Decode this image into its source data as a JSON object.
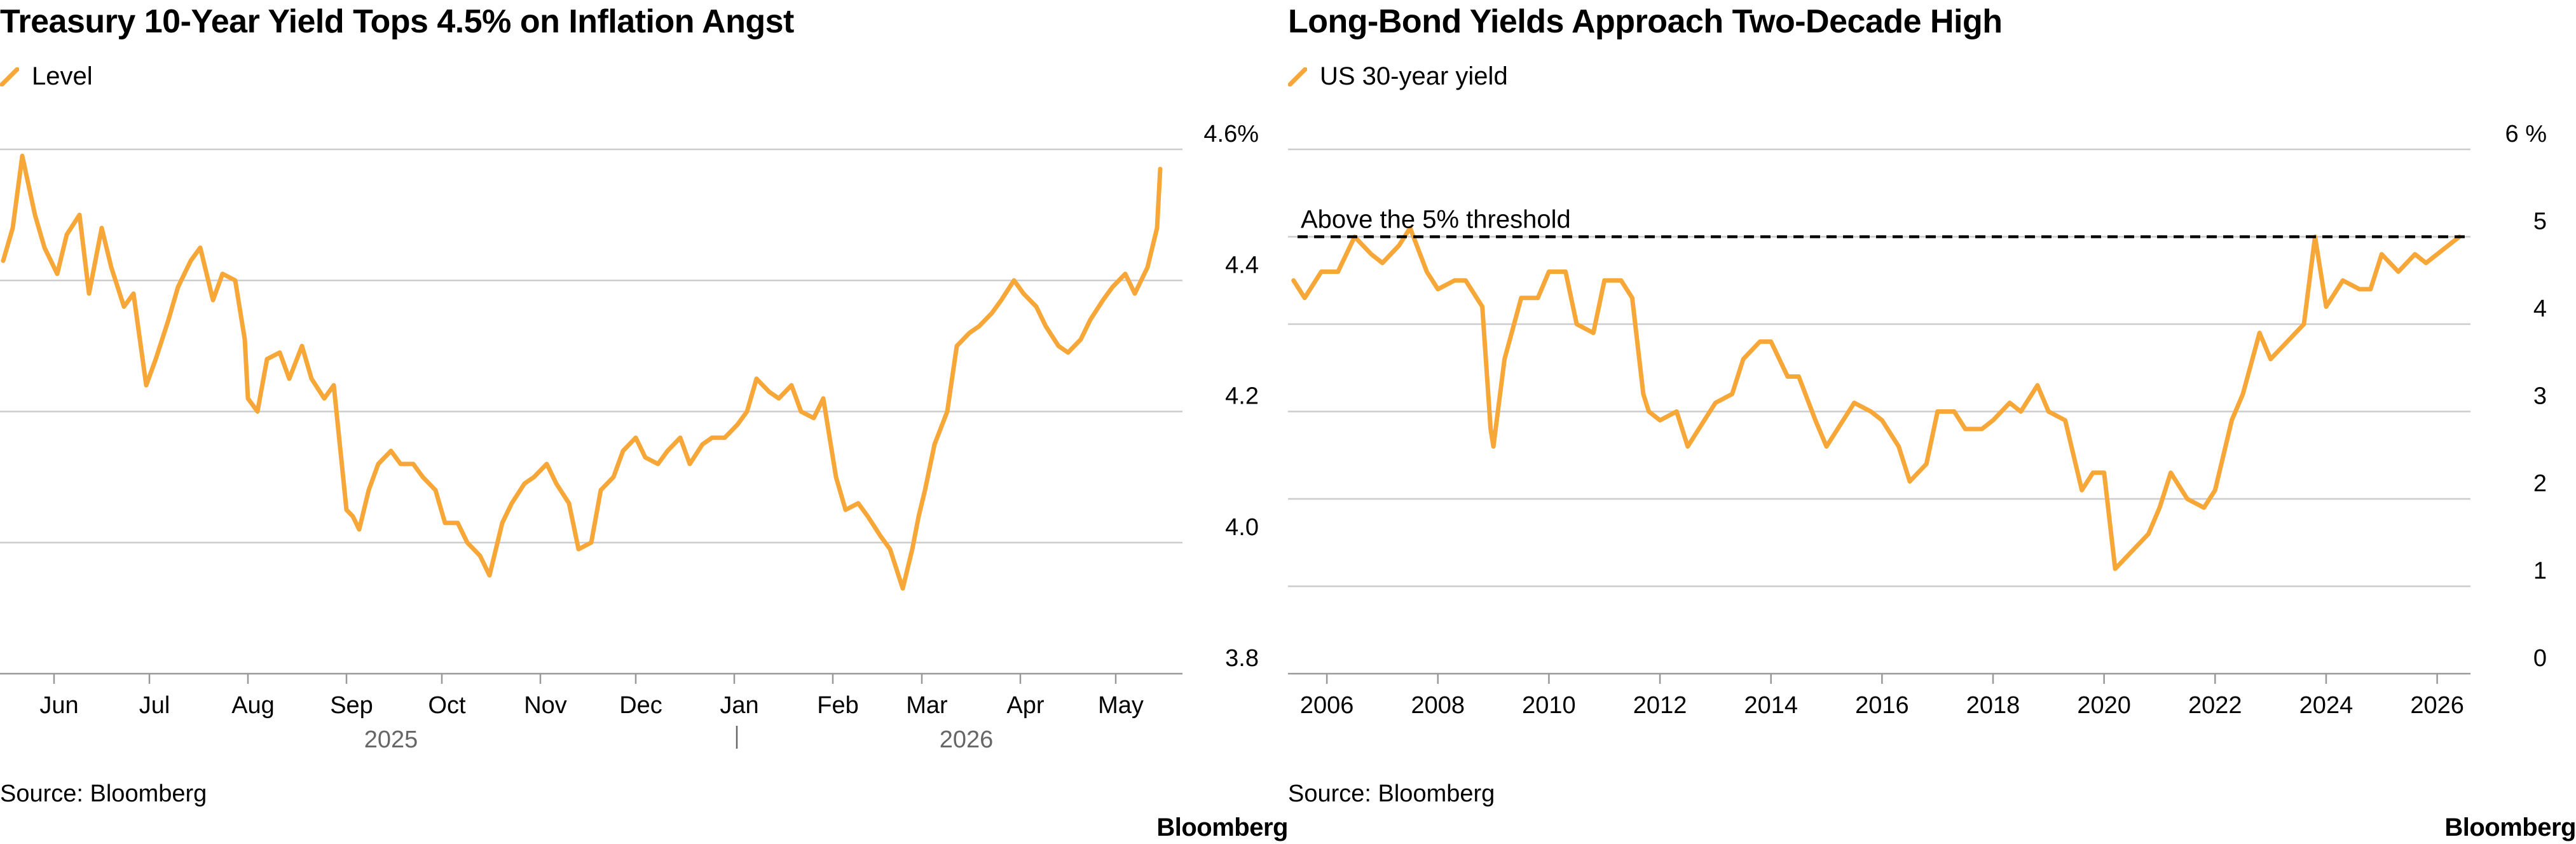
{
  "colors": {
    "series": "#F6A737",
    "grid": "#CCCCCC",
    "axis": "#999999",
    "threshold": "#000000"
  },
  "chart_data": [
    {
      "type": "line",
      "title": "Treasury 10-Year Yield Tops 4.5% on Inflation Angst",
      "legend": [
        "Level"
      ],
      "legend_position": "top-left",
      "source": "Source: Bloomberg",
      "brand": "Bloomberg",
      "grid": true,
      "y_axis_side": "right",
      "ylim": [
        3.8,
        4.6
      ],
      "yticks": [
        3.8,
        4.0,
        4.2,
        4.4,
        4.6
      ],
      "ytick_labels": [
        "3.8",
        "4.0",
        "4.2",
        "4.4",
        "4.6%"
      ],
      "xlim": [
        "2025-05-15",
        "2026-05-22"
      ],
      "x_month_ticks": [
        {
          "date": "2025-06-01",
          "label": "Jun"
        },
        {
          "date": "2025-07-01",
          "label": "Jul"
        },
        {
          "date": "2025-08-01",
          "label": "Aug"
        },
        {
          "date": "2025-09-01",
          "label": "Sep"
        },
        {
          "date": "2025-10-01",
          "label": "Oct"
        },
        {
          "date": "2025-11-01",
          "label": "Nov"
        },
        {
          "date": "2025-12-01",
          "label": "Dec"
        },
        {
          "date": "2026-01-01",
          "label": "Jan"
        },
        {
          "date": "2026-02-01",
          "label": "Feb"
        },
        {
          "date": "2026-03-01",
          "label": "Mar"
        },
        {
          "date": "2026-04-01",
          "label": "Apr"
        },
        {
          "date": "2026-05-01",
          "label": "May"
        }
      ],
      "x_year_labels": [
        {
          "label": "2025",
          "date": "2025-09-15"
        },
        {
          "label": "2026",
          "date": "2026-03-15"
        }
      ],
      "year_divider": "2026-01-01",
      "series": [
        {
          "name": "Level",
          "x": [
            "2025-05-16",
            "2025-05-19",
            "2025-05-22",
            "2025-05-26",
            "2025-05-29",
            "2025-06-02",
            "2025-06-05",
            "2025-06-09",
            "2025-06-12",
            "2025-06-16",
            "2025-06-19",
            "2025-06-23",
            "2025-06-26",
            "2025-06-30",
            "2025-07-03",
            "2025-07-07",
            "2025-07-10",
            "2025-07-14",
            "2025-07-17",
            "2025-07-21",
            "2025-07-24",
            "2025-07-28",
            "2025-07-31",
            "2025-08-01",
            "2025-08-04",
            "2025-08-07",
            "2025-08-11",
            "2025-08-14",
            "2025-08-18",
            "2025-08-21",
            "2025-08-25",
            "2025-08-28",
            "2025-09-01",
            "2025-09-03",
            "2025-09-05",
            "2025-09-08",
            "2025-09-11",
            "2025-09-15",
            "2025-09-18",
            "2025-09-22",
            "2025-09-25",
            "2025-09-29",
            "2025-10-02",
            "2025-10-06",
            "2025-10-09",
            "2025-10-13",
            "2025-10-16",
            "2025-10-20",
            "2025-10-23",
            "2025-10-27",
            "2025-10-30",
            "2025-11-03",
            "2025-11-06",
            "2025-11-10",
            "2025-11-13",
            "2025-11-17",
            "2025-11-20",
            "2025-11-24",
            "2025-11-27",
            "2025-12-01",
            "2025-12-04",
            "2025-12-08",
            "2025-12-11",
            "2025-12-15",
            "2025-12-18",
            "2025-12-22",
            "2025-12-25",
            "2025-12-29",
            "2026-01-02",
            "2026-01-05",
            "2026-01-08",
            "2026-01-12",
            "2026-01-15",
            "2026-01-19",
            "2026-01-22",
            "2026-01-26",
            "2026-01-29",
            "2026-02-02",
            "2026-02-05",
            "2026-02-09",
            "2026-02-12",
            "2026-02-16",
            "2026-02-19",
            "2026-02-23",
            "2026-02-26",
            "2026-02-28",
            "2026-03-02",
            "2026-03-05",
            "2026-03-09",
            "2026-03-12",
            "2026-03-16",
            "2026-03-19",
            "2026-03-23",
            "2026-03-26",
            "2026-03-30",
            "2026-04-02",
            "2026-04-06",
            "2026-04-09",
            "2026-04-13",
            "2026-04-16",
            "2026-04-20",
            "2026-04-23",
            "2026-04-27",
            "2026-04-30",
            "2026-05-04",
            "2026-05-07",
            "2026-05-11",
            "2026-05-14",
            "2026-05-15"
          ],
          "values": [
            4.43,
            4.48,
            4.59,
            4.5,
            4.45,
            4.41,
            4.47,
            4.5,
            4.38,
            4.48,
            4.42,
            4.36,
            4.38,
            4.24,
            4.28,
            4.34,
            4.39,
            4.43,
            4.45,
            4.37,
            4.41,
            4.4,
            4.31,
            4.22,
            4.2,
            4.28,
            4.29,
            4.25,
            4.3,
            4.25,
            4.22,
            4.24,
            4.05,
            4.04,
            4.02,
            4.08,
            4.12,
            4.14,
            4.12,
            4.12,
            4.1,
            4.08,
            4.03,
            4.03,
            4.0,
            3.98,
            3.95,
            4.03,
            4.06,
            4.09,
            4.1,
            4.12,
            4.09,
            4.06,
            3.99,
            4.0,
            4.08,
            4.1,
            4.14,
            4.16,
            4.13,
            4.12,
            4.14,
            4.16,
            4.12,
            4.15,
            4.16,
            4.16,
            4.18,
            4.2,
            4.25,
            4.23,
            4.22,
            4.24,
            4.2,
            4.19,
            4.22,
            4.1,
            4.05,
            4.06,
            4.04,
            4.01,
            3.99,
            3.93,
            3.99,
            4.04,
            4.08,
            4.15,
            4.2,
            4.3,
            4.32,
            4.33,
            4.35,
            4.37,
            4.4,
            4.38,
            4.36,
            4.33,
            4.3,
            4.29,
            4.31,
            4.34,
            4.37,
            4.39,
            4.41,
            4.38,
            4.42,
            4.48,
            4.57
          ]
        }
      ]
    },
    {
      "type": "line",
      "title": "Long-Bond Yields Approach Two-Decade High",
      "legend": [
        "US 30-year yield"
      ],
      "legend_position": "top-left",
      "source": "Source: Bloomberg",
      "brand": "Bloomberg",
      "grid": true,
      "y_axis_side": "right",
      "ylim": [
        0,
        6
      ],
      "yticks": [
        0,
        1,
        2,
        3,
        4,
        5,
        6
      ],
      "ytick_labels": [
        "0",
        "1",
        "2",
        "3",
        "4",
        "5",
        "6 %"
      ],
      "xlim": [
        2005.3,
        2026.6
      ],
      "xticks": [
        2006,
        2008,
        2010,
        2012,
        2014,
        2016,
        2018,
        2020,
        2022,
        2024,
        2026
      ],
      "xtick_labels": [
        "2006",
        "2008",
        "2010",
        "2012",
        "2014",
        "2016",
        "2018",
        "2020",
        "2022",
        "2024",
        "2026"
      ],
      "annotations": [
        {
          "type": "hline",
          "y": 5,
          "style": "dashed",
          "label": "Above the 5% threshold"
        }
      ],
      "series": [
        {
          "name": "US 30-year yield",
          "x": [
            2005.4,
            2005.6,
            2005.9,
            2006.2,
            2006.5,
            2006.8,
            2007.0,
            2007.3,
            2007.5,
            2007.8,
            2008.0,
            2008.3,
            2008.5,
            2008.8,
            2008.95,
            2009.0,
            2009.2,
            2009.5,
            2009.8,
            2010.0,
            2010.3,
            2010.5,
            2010.8,
            2011.0,
            2011.3,
            2011.5,
            2011.7,
            2011.8,
            2012.0,
            2012.3,
            2012.5,
            2012.8,
            2013.0,
            2013.3,
            2013.5,
            2013.8,
            2014.0,
            2014.3,
            2014.5,
            2014.8,
            2015.0,
            2015.2,
            2015.5,
            2015.8,
            2016.0,
            2016.3,
            2016.5,
            2016.8,
            2017.0,
            2017.3,
            2017.5,
            2017.8,
            2018.0,
            2018.3,
            2018.5,
            2018.8,
            2019.0,
            2019.3,
            2019.6,
            2019.8,
            2020.0,
            2020.2,
            2020.5,
            2020.8,
            2021.0,
            2021.2,
            2021.5,
            2021.8,
            2022.0,
            2022.3,
            2022.5,
            2022.8,
            2023.0,
            2023.3,
            2023.6,
            2023.8,
            2024.0,
            2024.3,
            2024.6,
            2024.8,
            2025.0,
            2025.3,
            2025.6,
            2025.8,
            2026.0,
            2026.2,
            2026.4
          ],
          "values": [
            4.5,
            4.3,
            4.6,
            4.6,
            5.0,
            4.8,
            4.7,
            4.9,
            5.1,
            4.6,
            4.4,
            4.5,
            4.5,
            4.2,
            2.8,
            2.6,
            3.6,
            4.3,
            4.3,
            4.6,
            4.6,
            4.0,
            3.9,
            4.5,
            4.5,
            4.3,
            3.2,
            3.0,
            2.9,
            3.0,
            2.6,
            2.9,
            3.1,
            3.2,
            3.6,
            3.8,
            3.8,
            3.4,
            3.4,
            2.9,
            2.6,
            2.8,
            3.1,
            3.0,
            2.9,
            2.6,
            2.2,
            2.4,
            3.0,
            3.0,
            2.8,
            2.8,
            2.9,
            3.1,
            3.0,
            3.3,
            3.0,
            2.9,
            2.1,
            2.3,
            2.3,
            1.2,
            1.4,
            1.6,
            1.9,
            2.3,
            2.0,
            1.9,
            2.1,
            2.9,
            3.2,
            3.9,
            3.6,
            3.8,
            4.0,
            5.0,
            4.2,
            4.5,
            4.4,
            4.4,
            4.8,
            4.6,
            4.8,
            4.7,
            4.8,
            4.9,
            5.0
          ]
        }
      ]
    }
  ]
}
